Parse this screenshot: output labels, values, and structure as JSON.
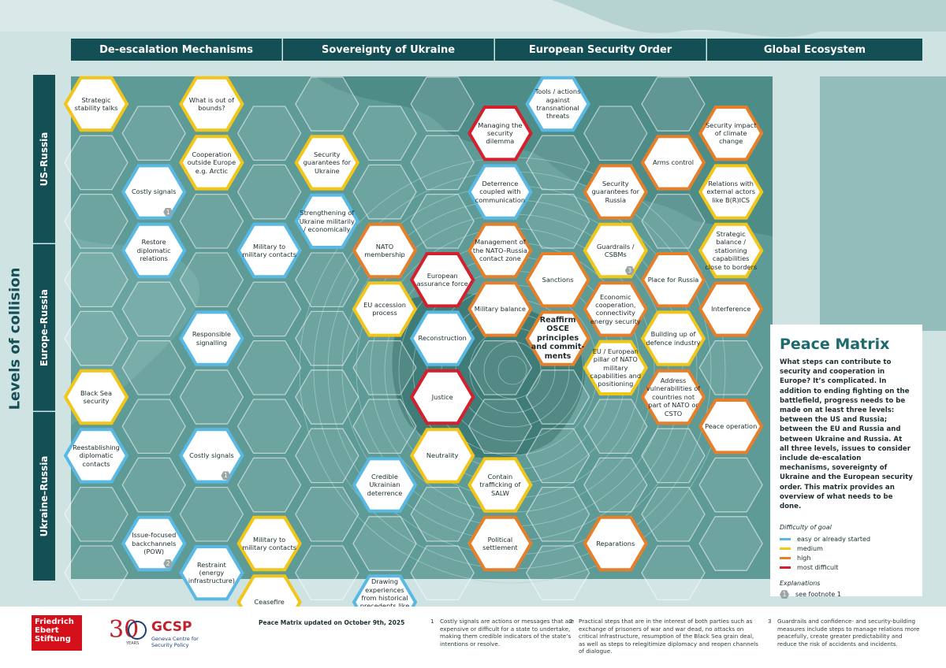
{
  "colors": {
    "easy": "#5ab9e3",
    "medium": "#f2c618",
    "high": "#e57f2a",
    "most_difficult": "#d4202d",
    "header_bg": "#134f55",
    "accent": "#1c6b6e"
  },
  "columns": [
    "De-escalation Mechanisms",
    "Sovereignty of Ukraine",
    "European Security Order",
    "Global Ecosystem"
  ],
  "rows": [
    "US–Russia",
    "Europe–Russia",
    "Ukraine–Russia"
  ],
  "side_title": "Levels of collision",
  "panel": {
    "title": "Peace Matrix",
    "description": "What steps can contribute to security and cooperation in Europe? It’s complicated. In addition to ending fighting on the battlefield, progress needs to be made on at least three levels: between the US and Russia; between the EU and Russia and between Ukraine and Russia. At all three levels, issues to consider include de-escalation mechanisms, sovereignty of Ukraine and the European security order. This matrix provides an overview of what needs to be done.",
    "difficulty_title": "Difficulty of goal",
    "legend": [
      "easy or already started",
      "medium",
      "high",
      "most difficult"
    ],
    "explanations_title": "Explanations",
    "footnote_badge": "1",
    "footnote_label": "see footnote 1"
  },
  "hexes": [
    {
      "label": "Strategic stability talks",
      "level": "medium"
    },
    {
      "label": "What is out of bounds?",
      "level": "medium"
    },
    {
      "label": "Costly signals",
      "level": "easy",
      "badge": "1"
    },
    {
      "label": "Cooperation outside Europe e.g. Arctic",
      "level": "medium"
    },
    {
      "label": "Restore diplomatic relations",
      "level": "easy"
    },
    {
      "label": "Military to military contacts",
      "level": "easy"
    },
    {
      "label": "Responsible signalling",
      "level": "easy"
    },
    {
      "label": "Black Sea security",
      "level": "medium"
    },
    {
      "label": "Reestablishing diplomatic contacts",
      "level": "easy"
    },
    {
      "label": "Costly signals",
      "level": "easy",
      "badge": "1"
    },
    {
      "label": "Issue-focused backchannels (POW)",
      "level": "easy",
      "badge": "2"
    },
    {
      "label": "Military to military contacts",
      "level": "medium"
    },
    {
      "label": "Restraint (energy infrastructure)",
      "level": "easy"
    },
    {
      "label": "Ceasefire",
      "level": "medium"
    },
    {
      "label": "Security guarantees for Ukraine",
      "level": "medium"
    },
    {
      "label": "Strengthening of Ukraine militarily / economically",
      "level": "easy"
    },
    {
      "label": "NATO membership",
      "level": "high"
    },
    {
      "label": "EU accession process",
      "level": "medium"
    },
    {
      "label": "European assurance force",
      "level": "most"
    },
    {
      "label": "Reconstruction",
      "level": "easy"
    },
    {
      "label": "Justice",
      "level": "most"
    },
    {
      "label": "Credible Ukrainian deterrence",
      "level": "easy"
    },
    {
      "label": "Neutrality",
      "level": "medium"
    },
    {
      "label": "Drawing experiences from historical precedents like GER, South Korea",
      "level": "easy"
    },
    {
      "label": "Managing the security dilemma",
      "level": "most"
    },
    {
      "label": "Tools / actions against transnational threats",
      "level": "easy"
    },
    {
      "label": "Deterrence coupled with communication",
      "level": "easy"
    },
    {
      "label": "Security guarantees for Russia",
      "level": "high"
    },
    {
      "label": "Arms control",
      "level": "high"
    },
    {
      "label": "Management of the NATO–Russia contact zone",
      "level": "high"
    },
    {
      "label": "Guardrails / CSBMs",
      "level": "medium",
      "badge": "3"
    },
    {
      "label": "Sanctions",
      "level": "high"
    },
    {
      "label": "Place for Russia",
      "level": "high"
    },
    {
      "label": "Military balance",
      "level": "high"
    },
    {
      "label": "Economic cooperation, connectivity energy security",
      "level": "high"
    },
    {
      "label": "Reaffirm OSCE principles and commit- ments",
      "level": "high",
      "bold": true
    },
    {
      "label": "Building up of defence industry",
      "level": "medium"
    },
    {
      "label": "EU / European pillar of NATO military capabilities and positioning",
      "level": "medium"
    },
    {
      "label": "Address vulnerabilities of countries not part of NATO or CSTO",
      "level": "high"
    },
    {
      "label": "Contain trafficking of SALW",
      "level": "medium"
    },
    {
      "label": "Political settlement",
      "level": "high"
    },
    {
      "label": "Reparations",
      "level": "high"
    },
    {
      "label": "Security impact of climate change",
      "level": "high"
    },
    {
      "label": "Relations with external actors like B(R)ICS",
      "level": "medium"
    },
    {
      "label": "Strategic balance / stationing capabilities close to borders",
      "level": "medium"
    },
    {
      "label": "Interference",
      "level": "high"
    },
    {
      "label": "Peace operation",
      "level": "high"
    }
  ],
  "footer": {
    "fes_logo": "Friedrich Ebert Stiftung",
    "gcsp_thirty": "30",
    "gcsp_years": "YEARS",
    "gcsp_name": "GCSP",
    "gcsp_full": "Geneva Centre for Security Policy",
    "updated": "Peace Matrix updated on October 9th, 2025",
    "notes": [
      {
        "num": "1",
        "text": "Costly signals are actions or messages that are expensive or difficult for a state to undertake, making them credible indicators of the state’s intentions or resolve."
      },
      {
        "num": "2",
        "text": "Practical steps that are in the interest of both parties such as exchange of prisoners of war and war dead, no attacks on critical infrastructure, resumption of the Black Sea grain deal, as well as steps to relegitimize diplomacy and reopen channels of dialogue."
      },
      {
        "num": "3",
        "text": "Guardrails and confidence- and security-building measures include steps to manage relations more peacefully, create greater predictability and reduce the risk of accidents and incidents."
      }
    ]
  }
}
